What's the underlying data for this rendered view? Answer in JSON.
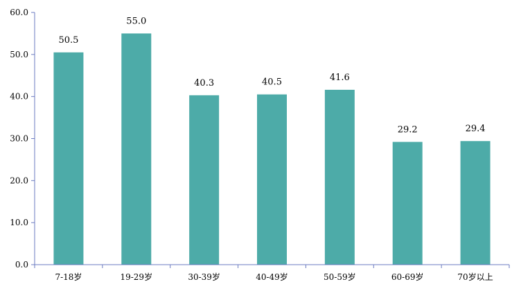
{
  "chart_data": {
    "type": "bar",
    "title": "",
    "xlabel": "",
    "ylabel": "",
    "categories": [
      "7-18岁",
      "19-29岁",
      "30-39岁",
      "40-49岁",
      "50-59岁",
      "60-69岁",
      "70岁以上"
    ],
    "values": [
      50.5,
      55.0,
      40.3,
      40.5,
      41.6,
      29.2,
      29.4
    ],
    "value_labels": [
      "50.5",
      "55.0",
      "40.3",
      "40.5",
      "41.6",
      "29.2",
      "29.4"
    ],
    "ylim": [
      0,
      60
    ],
    "yticks": [
      0,
      10,
      20,
      30,
      40,
      50,
      60
    ],
    "ytick_labels": [
      "0.0",
      "10.0",
      "20.0",
      "30.0",
      "40.0",
      "50.0",
      "60.0"
    ],
    "grid": false,
    "legend": "none",
    "colors": {
      "bar": "#4daba8",
      "axis": "#6a7ac0"
    }
  }
}
